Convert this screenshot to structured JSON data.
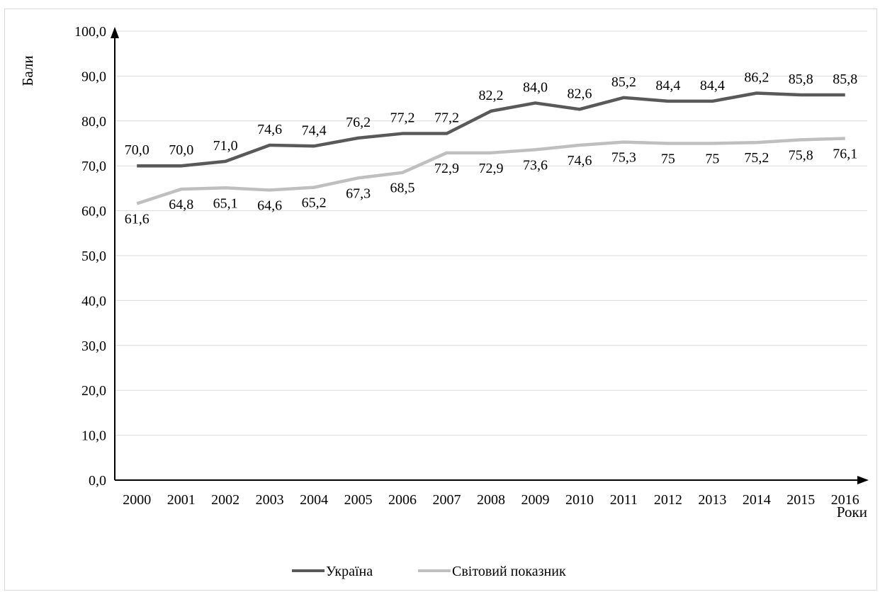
{
  "chart_data": {
    "type": "line",
    "title": "",
    "ylabel": "Бали",
    "xlabel": "Роки",
    "ylim": [
      0,
      100
    ],
    "yticks": [
      "0,0",
      "10,0",
      "20,0",
      "30,0",
      "40,0",
      "50,0",
      "60,0",
      "70,0",
      "80,0",
      "90,0",
      "100,0"
    ],
    "categories": [
      "2000",
      "2001",
      "2002",
      "2003",
      "2004",
      "2005",
      "2006",
      "2007",
      "2008",
      "2009",
      "2010",
      "2011",
      "2012",
      "2013",
      "2014",
      "2015",
      "2016"
    ],
    "grid": true,
    "legend_position": "bottom",
    "series": [
      {
        "name": "Україна",
        "color": "#595959",
        "values": [
          70.0,
          70.0,
          71.0,
          74.6,
          74.4,
          76.2,
          77.2,
          77.2,
          82.2,
          84.0,
          82.6,
          85.2,
          84.4,
          84.4,
          86.2,
          85.8,
          85.8
        ],
        "labels": [
          "70,0",
          "70,0",
          "71,0",
          "74,6",
          "74,4",
          "76,2",
          "77,2",
          "77,2",
          "82,2",
          "84,0",
          "82,6",
          "85,2",
          "84,4",
          "84,4",
          "86,2",
          "85,8",
          "85,8"
        ],
        "label_position": "above"
      },
      {
        "name": "Світовий показник",
        "color": "#bfbfbf",
        "values": [
          61.6,
          64.8,
          65.1,
          64.6,
          65.2,
          67.3,
          68.5,
          72.9,
          72.9,
          73.6,
          74.6,
          75.3,
          75,
          75,
          75.2,
          75.8,
          76.1
        ],
        "labels": [
          "61,6",
          "64,8",
          "65,1",
          "64,6",
          "65,2",
          "67,3",
          "68,5",
          "72,9",
          "72,9",
          "73,6",
          "74,6",
          "75,3",
          "75",
          "75",
          "75,2",
          "75,8",
          "76,1"
        ],
        "label_position": "below"
      }
    ]
  }
}
